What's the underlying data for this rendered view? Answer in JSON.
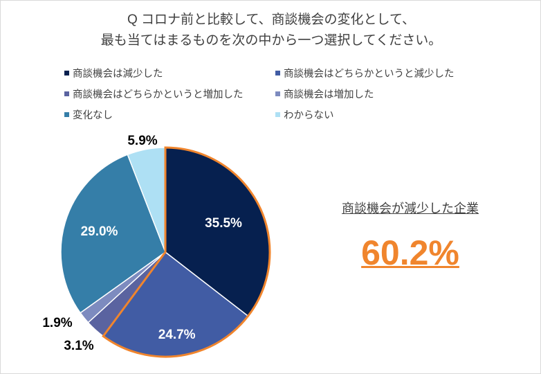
{
  "chart_data": {
    "type": "pie",
    "title": [
      "Q コロナ前と比較して、商談機会の変化として、",
      "最も当てはまるものを次の中から一つ選択してください。"
    ],
    "categories": [
      "商談機会は減少した",
      "商談機会はどちらかというと減少した",
      "商談機会はどちらかというと増加した",
      "商談機会は増加した",
      "変化なし",
      "わからない"
    ],
    "values": [
      35.5,
      24.7,
      3.1,
      1.9,
      29.0,
      5.9
    ],
    "data_labels": [
      "35.5%",
      "24.7%",
      "3.1%",
      "1.9%",
      "29.0%",
      "5.9%"
    ],
    "colors": [
      "#06204f",
      "#415ca4",
      "#5a63a0",
      "#7d8bbf",
      "#357ea8",
      "#aee0f4"
    ],
    "highlight_color": "#f0852d",
    "legend_position": "top"
  },
  "callout": {
    "title": "商談機会が減少した企業",
    "value": "60.2%"
  }
}
